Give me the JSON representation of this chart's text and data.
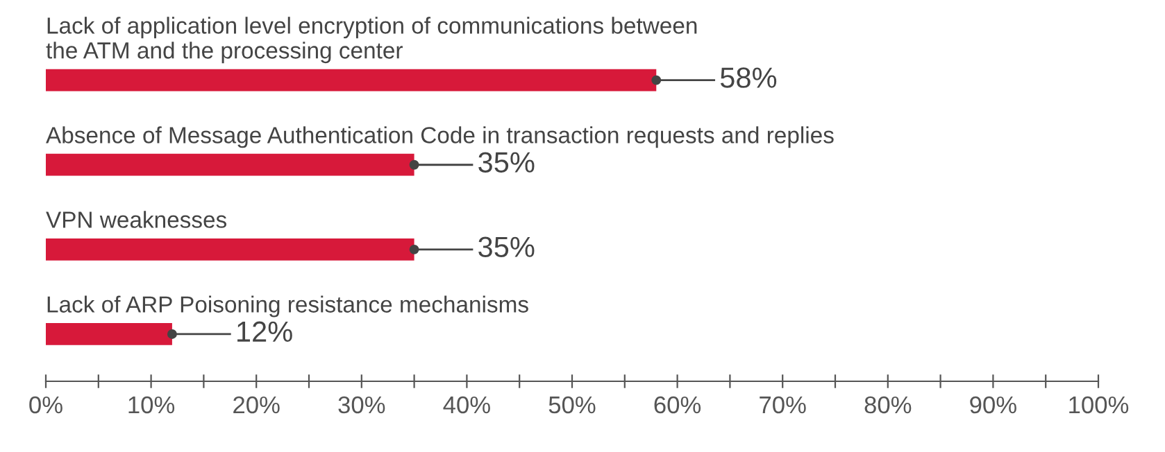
{
  "chart_data": {
    "type": "bar",
    "orientation": "horizontal",
    "categories": [
      "Lack of application level encryption of communications between\nthe ATM and the processing center",
      "Absence of Message Authentication Code in transaction requests and replies",
      "VPN weaknesses",
      "Lack of ARP Poisoning resistance mechanisms"
    ],
    "values": [
      58,
      35,
      35,
      12
    ],
    "color": "#d7193a",
    "value_labels": [
      "58%",
      "35%",
      "35%",
      "12%"
    ],
    "xlim": [
      0,
      100
    ],
    "xticks": [
      {
        "value": 0,
        "label": "0%"
      },
      {
        "value": 5,
        "label": null
      },
      {
        "value": 10,
        "label": "10%"
      },
      {
        "value": 15,
        "label": null
      },
      {
        "value": 20,
        "label": "20%"
      },
      {
        "value": 25,
        "label": null
      },
      {
        "value": 30,
        "label": "30%"
      },
      {
        "value": 35,
        "label": null
      },
      {
        "value": 40,
        "label": "40%"
      },
      {
        "value": 45,
        "label": null
      },
      {
        "value": 50,
        "label": "50%"
      },
      {
        "value": 55,
        "label": null
      },
      {
        "value": 60,
        "label": "60%"
      },
      {
        "value": 65,
        "label": null
      },
      {
        "value": 70,
        "label": "70%"
      },
      {
        "value": 75,
        "label": null
      },
      {
        "value": 80,
        "label": "80%"
      },
      {
        "value": 85,
        "label": null
      },
      {
        "value": 90,
        "label": "90%"
      },
      {
        "value": 95,
        "label": null
      },
      {
        "value": 100,
        "label": "100%"
      }
    ],
    "grid": false,
    "legend": false
  }
}
